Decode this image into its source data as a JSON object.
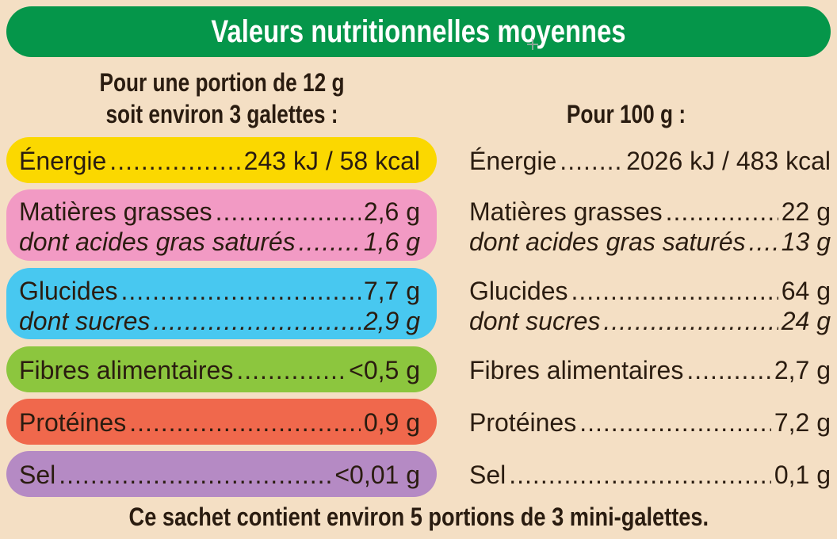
{
  "header": {
    "title": "Valeurs nutritionnelles moyennes",
    "color": "#05964a"
  },
  "columns": {
    "portion_line1": "Pour une portion de 12 g",
    "portion_line2": "soit environ 3 galettes :",
    "per100": "Pour 100 g :"
  },
  "rows": {
    "energie": {
      "label": "Énergie",
      "portion": "243 kJ / 58 kcal",
      "per100": "2026 kJ / 483 kcal",
      "color": "#fbd800"
    },
    "matieres_grasses": {
      "label": "Matières grasses",
      "portion": "2,6 g",
      "per100": "22 g",
      "color": "#f29ac4"
    },
    "satures": {
      "label": "dont acides gras saturés",
      "portion": "1,6 g",
      "per100": "13 g"
    },
    "glucides": {
      "label": "Glucides",
      "portion": "7,7 g",
      "per100": "64 g",
      "color": "#48c8f0"
    },
    "sucres": {
      "label": "dont sucres",
      "portion": "2,9 g",
      "per100": "24 g"
    },
    "fibres": {
      "label": "Fibres alimentaires",
      "portion": "<0,5 g",
      "per100": "2,7 g",
      "color": "#8cc63e"
    },
    "proteines": {
      "label": "Protéines",
      "portion": "0,9 g",
      "per100": "7,2 g",
      "color": "#f0684c"
    },
    "sel": {
      "label": "Sel",
      "portion": "<0,01 g",
      "per100": "0,1 g",
      "color": "#b58ac4"
    }
  },
  "footer": {
    "text": "Ce sachet contient environ 5 portions de 3 mini-galettes."
  }
}
